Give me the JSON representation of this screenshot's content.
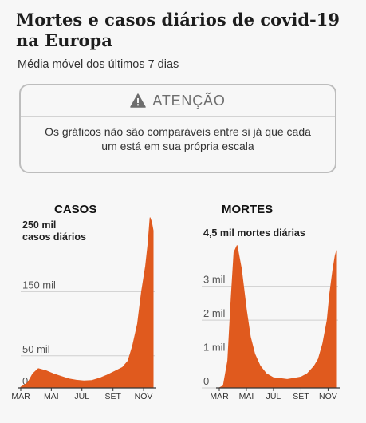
{
  "header": {
    "title": "Mortes e casos diários de covid-19 na Europa",
    "subtitle": "Média móvel dos últimos 7 dias"
  },
  "notice": {
    "title": "ATENÇÃO",
    "icon": "warning-icon",
    "text": "Os gráficos não são comparáveis entre si já que cada um está em sua própria escala"
  },
  "colors": {
    "fill": "#e05a1e",
    "grid": "#cfcfcf"
  },
  "chart_data": [
    {
      "type": "area",
      "title": "CASOS",
      "x_ticks": [
        "MAR",
        "MAI",
        "JUL",
        "SET",
        "NOV"
      ],
      "y_ticks": [
        {
          "value": 0,
          "label": "0"
        },
        {
          "value": 50000,
          "label": "50 mil"
        },
        {
          "value": 150000,
          "label": "150 mil"
        },
        {
          "value": 250000,
          "label": "250 mil\ncasos diários"
        }
      ],
      "ylim": [
        0,
        250000
      ],
      "x_range": [
        "2020-03-01",
        "2020-11-20"
      ],
      "grid": "horizontal",
      "series": [
        {
          "x": [
            "2020-03-01",
            "2020-03-15",
            "2020-03-25",
            "2020-04-05",
            "2020-04-20",
            "2020-05-05",
            "2020-05-20",
            "2020-06-05",
            "2020-06-20",
            "2020-07-05",
            "2020-07-20",
            "2020-08-05",
            "2020-08-20",
            "2020-09-05",
            "2020-09-20",
            "2020-10-01",
            "2020-10-10",
            "2020-10-20",
            "2020-10-28",
            "2020-11-05",
            "2020-11-10",
            "2020-11-14",
            "2020-11-17",
            "2020-11-20"
          ],
          "values": [
            1000,
            8000,
            22000,
            30000,
            27000,
            22000,
            18000,
            14000,
            12000,
            11000,
            11500,
            15000,
            20000,
            26000,
            32000,
            42000,
            65000,
            100000,
            150000,
            190000,
            225000,
            265000,
            258000,
            245000
          ]
        }
      ]
    },
    {
      "type": "area",
      "title": "MORTES",
      "x_ticks": [
        "MAR",
        "MAI",
        "JUL",
        "SET",
        "NOV"
      ],
      "y_ticks": [
        {
          "value": 0,
          "label": "0"
        },
        {
          "value": 1000,
          "label": "1 mil"
        },
        {
          "value": 2000,
          "label": "2 mil"
        },
        {
          "value": 3000,
          "label": "3 mil"
        },
        {
          "value": 4500,
          "label": "4,5 mil mortes diárias"
        }
      ],
      "ylim": [
        0,
        4500
      ],
      "x_range": [
        "2020-03-01",
        "2020-11-20"
      ],
      "grid": "horizontal",
      "series": [
        {
          "x": [
            "2020-03-01",
            "2020-03-10",
            "2020-03-20",
            "2020-03-28",
            "2020-04-03",
            "2020-04-10",
            "2020-04-20",
            "2020-05-01",
            "2020-05-10",
            "2020-05-20",
            "2020-06-01",
            "2020-06-15",
            "2020-07-01",
            "2020-07-15",
            "2020-08-01",
            "2020-08-15",
            "2020-09-01",
            "2020-09-15",
            "2020-10-01",
            "2020-10-10",
            "2020-10-20",
            "2020-10-30",
            "2020-11-05",
            "2020-11-12",
            "2020-11-17",
            "2020-11-20"
          ],
          "values": [
            0,
            60,
            800,
            2700,
            4000,
            4200,
            3500,
            2300,
            1500,
            1000,
            650,
            420,
            300,
            280,
            250,
            280,
            320,
            420,
            650,
            850,
            1300,
            2000,
            2800,
            3500,
            3900,
            4050
          ]
        }
      ]
    }
  ]
}
